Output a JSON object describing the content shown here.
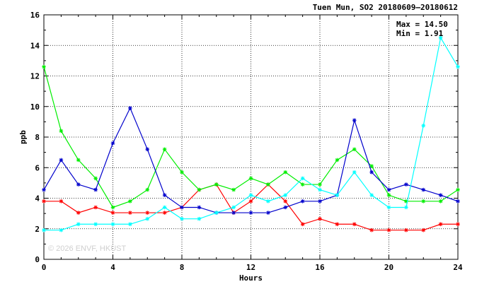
{
  "chart_data": {
    "type": "line",
    "title": "Tuen Mun, SO2 20180609–20180612",
    "xlabel": "Hours",
    "ylabel": "ppb",
    "xlim": [
      0,
      24
    ],
    "ylim": [
      0,
      16
    ],
    "xticks": [
      "0",
      "4",
      "8",
      "12",
      "16",
      "20",
      "24"
    ],
    "yticks": [
      "0",
      "2",
      "4",
      "6",
      "8",
      "10",
      "12",
      "14",
      "16"
    ],
    "grid": true,
    "annotations": {
      "max": "Max = 14.50",
      "min": "Min =  1.91"
    },
    "watermark": "© 2026  ENVF, HKUST",
    "x": [
      0,
      1,
      2,
      3,
      4,
      5,
      6,
      7,
      8,
      9,
      10,
      11,
      12,
      13,
      14,
      15,
      16,
      17,
      18,
      19,
      20,
      21,
      22,
      23,
      24
    ],
    "series": [
      {
        "color": "#ff0000",
        "values": [
          3.8,
          3.8,
          3.05,
          3.4,
          3.05,
          3.05,
          3.05,
          3.05,
          3.4,
          4.55,
          4.9,
          3.05,
          3.8,
          4.9,
          3.8,
          2.3,
          2.65,
          2.3,
          2.3,
          1.91,
          1.91,
          1.91,
          1.91,
          2.3,
          2.3
        ]
      },
      {
        "color": "#00ee00",
        "values": [
          12.6,
          8.4,
          6.5,
          5.3,
          3.4,
          3.8,
          4.55,
          7.2,
          5.7,
          4.55,
          4.9,
          4.55,
          5.3,
          4.9,
          5.7,
          4.9,
          4.9,
          6.5,
          7.2,
          6.1,
          4.2,
          3.8,
          3.8,
          3.8,
          4.55
        ]
      },
      {
        "color": "#0000cc",
        "values": [
          4.55,
          6.5,
          4.9,
          4.55,
          7.6,
          9.9,
          7.2,
          4.2,
          3.4,
          3.4,
          3.05,
          3.05,
          3.05,
          3.05,
          3.4,
          3.8,
          3.8,
          4.2,
          9.1,
          5.7,
          4.55,
          4.9,
          4.55,
          4.2,
          3.8
        ]
      },
      {
        "color": "#00ffff",
        "values": [
          1.91,
          1.91,
          2.3,
          2.3,
          2.3,
          2.3,
          2.65,
          3.4,
          2.65,
          2.65,
          3.05,
          3.4,
          4.2,
          3.8,
          4.2,
          5.3,
          4.55,
          4.2,
          5.7,
          4.2,
          3.4,
          3.4,
          8.75,
          14.5,
          12.6
        ]
      }
    ]
  }
}
